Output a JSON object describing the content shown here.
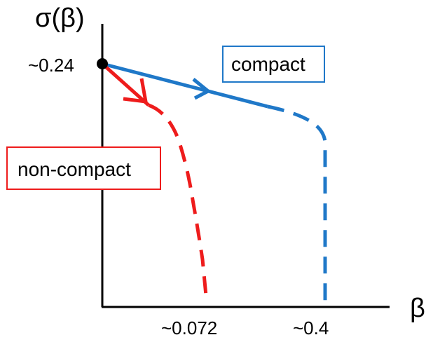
{
  "labels": {
    "y_axis": "σ(β)",
    "x_axis": "β",
    "start_value": "~0.24",
    "red_end": "~0.072",
    "blue_end": "~0.4"
  },
  "legend": {
    "compact": "compact",
    "non_compact": "non-compact"
  },
  "colors": {
    "compact": "#1f78c8",
    "non_compact": "#ee1c1c",
    "axis": "#000000"
  }
}
